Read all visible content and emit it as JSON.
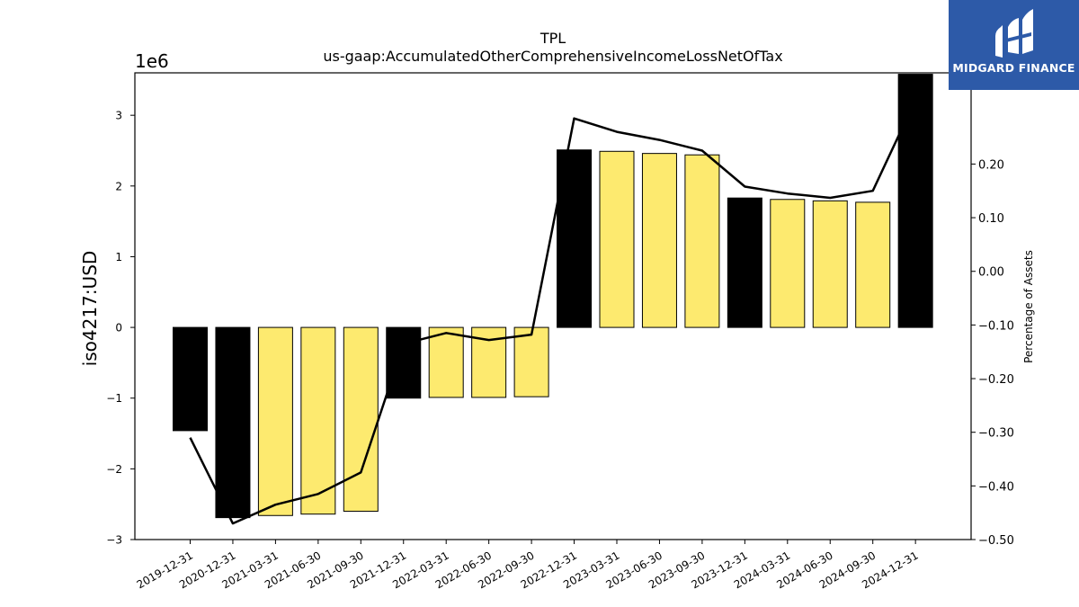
{
  "chart_data": {
    "type": "bar",
    "title": "TPL",
    "subtitle": "us-gaap:AccumulatedOtherComprehensiveIncomeLossNetOfTax",
    "ylabel": "iso4217:USD",
    "y2label": "Percentage of Assets",
    "y_offset_text": "1e6",
    "ylim": [
      -3000000,
      3600000
    ],
    "y2lim": [
      -0.5,
      0.37
    ],
    "yticks": [
      -3000000,
      -2000000,
      -1000000,
      0,
      1000000,
      2000000,
      3000000
    ],
    "yticklabels": [
      "−3",
      "−2",
      "−1",
      "0",
      "1",
      "2",
      "3"
    ],
    "y2ticks": [
      -0.5,
      -0.4,
      -0.3,
      -0.2,
      -0.1,
      0.0,
      0.1,
      0.2
    ],
    "y2ticklabels": [
      "−0.50",
      "−0.40",
      "−0.30",
      "−0.20",
      "−0.10",
      "0.00",
      "0.10",
      "0.20"
    ],
    "categories": [
      "2019-12-31",
      "2020-12-31",
      "2021-03-31",
      "2021-06-30",
      "2021-09-30",
      "2021-12-31",
      "2022-03-31",
      "2022-06-30",
      "2022-09-30",
      "2022-12-31",
      "2023-03-31",
      "2023-06-30",
      "2023-09-30",
      "2023-12-31",
      "2024-03-31",
      "2024-06-30",
      "2024-09-30",
      "2024-12-31"
    ],
    "series": [
      {
        "kind": "bar",
        "values": [
          -1460000,
          -2690000,
          -2660000,
          -2640000,
          -2600000,
          -1000000,
          -990000,
          -990000,
          -980000,
          2510000,
          2490000,
          2460000,
          2440000,
          1830000,
          1810000,
          1790000,
          1770000,
          3580000
        ],
        "colors": [
          "#000000",
          "#000000",
          "#fdea6f",
          "#fdea6f",
          "#fdea6f",
          "#000000",
          "#fdea6f",
          "#fdea6f",
          "#fdea6f",
          "#000000",
          "#fdea6f",
          "#fdea6f",
          "#fdea6f",
          "#000000",
          "#fdea6f",
          "#fdea6f",
          "#fdea6f",
          "#000000"
        ]
      },
      {
        "kind": "line",
        "axis": "right",
        "color": "#000000",
        "values": [
          -0.31,
          -0.47,
          -0.435,
          -0.415,
          -0.375,
          -0.135,
          -0.115,
          -0.128,
          -0.118,
          0.285,
          0.26,
          0.245,
          0.225,
          0.158,
          0.145,
          0.137,
          0.15,
          0.32
        ]
      }
    ],
    "grid": false,
    "legend": "none"
  },
  "logo": {
    "name": "MIDGARD FINANCE",
    "background": "#2d5aa8"
  }
}
